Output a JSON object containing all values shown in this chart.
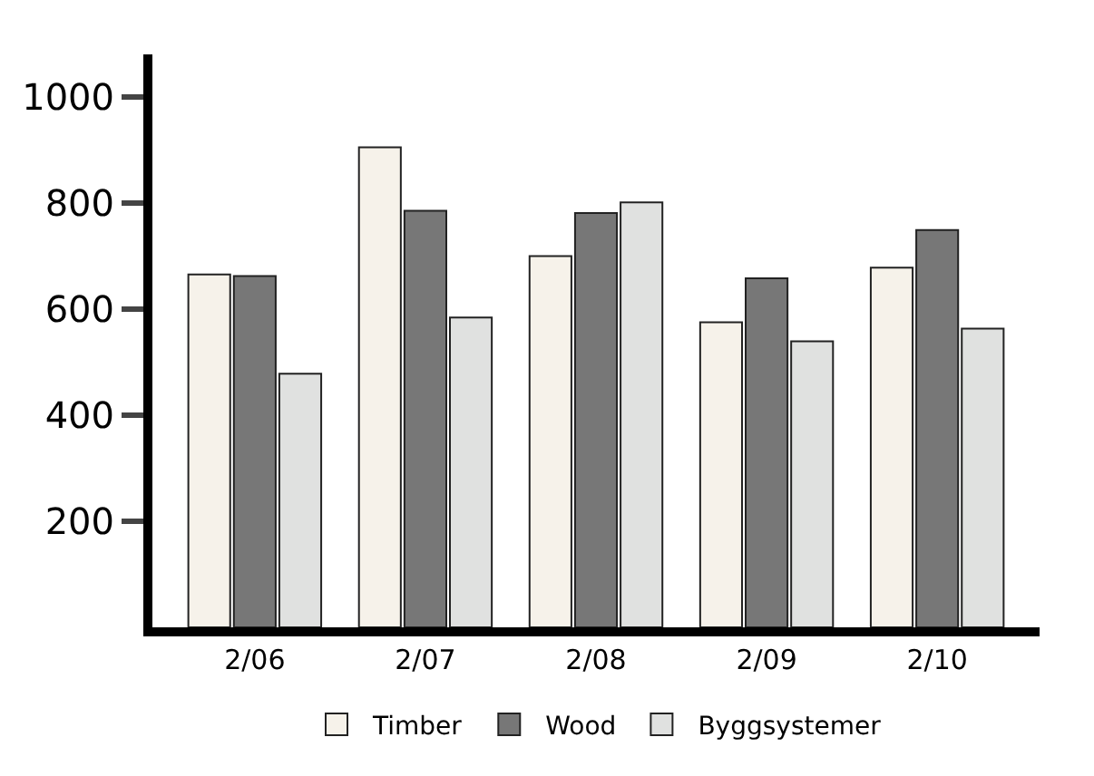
{
  "chart_data": {
    "type": "bar",
    "categories": [
      "2/06",
      "2/07",
      "2/08",
      "2/09",
      "2/10"
    ],
    "series": [
      {
        "name": "Timber",
        "color": "#f6f2ea",
        "values": [
          665,
          905,
          700,
          575,
          678
        ]
      },
      {
        "name": "Wood",
        "color": "#777777",
        "values": [
          662,
          785,
          781,
          658,
          749
        ]
      },
      {
        "name": "Byggsystemer",
        "color": "#e0e1e0",
        "values": [
          478,
          584,
          801,
          539,
          563
        ]
      }
    ],
    "ylim": [
      0,
      1080
    ],
    "yticks": [
      200,
      400,
      600,
      800,
      1000
    ],
    "legend": "bottom"
  }
}
